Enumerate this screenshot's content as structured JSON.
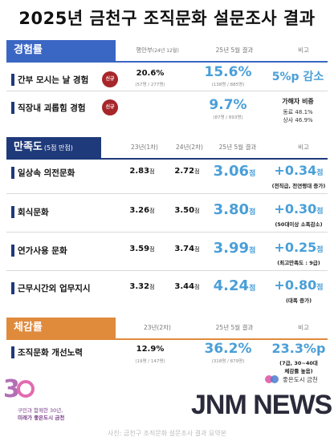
{
  "title": "2025년 금천구 조직문화 설문조사 결과",
  "colors": {
    "navy": "#1f3a7a",
    "blue": "#3a66c4",
    "accent": "#4a9fd8",
    "orange": "#e08a3c",
    "red_badge": "#a6262a"
  },
  "sec1": {
    "label": "경험률",
    "col1": "행안부",
    "col1_sub": "(24년 12월)",
    "col2": "25년 5월 결과",
    "col3": "비고",
    "rows": [
      {
        "label": "간부 모시는 날 경험",
        "badge": "신규",
        "v1": "20.6%",
        "v1_sub": "(57명 / 277명)",
        "v2": "15.6%",
        "v2_sub": "(138명 / 885명)",
        "diff": "5%p 감소"
      },
      {
        "label": "직장내 괴롭힘 경험",
        "badge": "신규",
        "v2": "9.7%",
        "v2_sub": "(87명 / 893명)",
        "note_title": "가해자 비중",
        "note_line1": "동료 48.1%",
        "note_line2": "상사 46.9%"
      }
    ]
  },
  "sec2": {
    "label": "만족도",
    "label_sub": "(5점 만점)",
    "col1": "23년(1차)",
    "col2": "24년(2차)",
    "col3": "25년 5월 결과",
    "col4": "비고",
    "unit": "점",
    "rows": [
      {
        "label": "일상속 의전문화",
        "v1": "2.83",
        "v2": "2.72",
        "v3": "3.06",
        "diff": "+0.34",
        "note": "(전직급, 전연령대 증가)"
      },
      {
        "label": "회식문화",
        "v1": "3.26",
        "v2": "3.50",
        "v3": "3.80",
        "diff": "+0.30",
        "note": "(50대이상 소폭감소)"
      },
      {
        "label": "연가사용 문화",
        "v1": "3.59",
        "v2": "3.74",
        "v3": "3.99",
        "diff": "+0.25",
        "note": "(최고만족도 : 9급)"
      },
      {
        "label": "근무시간외 업무지시",
        "v1": "3.32",
        "v2": "3.44",
        "v3": "4.24",
        "diff": "+0.80",
        "note": "(대폭 증가)"
      }
    ]
  },
  "sec3": {
    "label": "체감률",
    "col1": "23년(2차)",
    "col2": "25년 5월 결과",
    "col3": "비고",
    "rows": [
      {
        "label": "조직문화 개선노력",
        "v1": "12.9%",
        "v1_sub": "(19명 / 147명)",
        "v2": "36.2%",
        "v2_sub": "(318명 / 879명)",
        "diff": "23.3%p",
        "note_line1": "(7급, 30~40대",
        "note_line2": "체감률 높음)"
      }
    ]
  },
  "footer": {
    "left_line1": "구민과 함께한 30년,",
    "left_line2": "미래가 좋은도시 금천",
    "right_brand": "좋은도시 금천",
    "news": "JNM NEWS",
    "caption": "사진: 금천구 조직문화 설문조사 결과 요약본"
  }
}
